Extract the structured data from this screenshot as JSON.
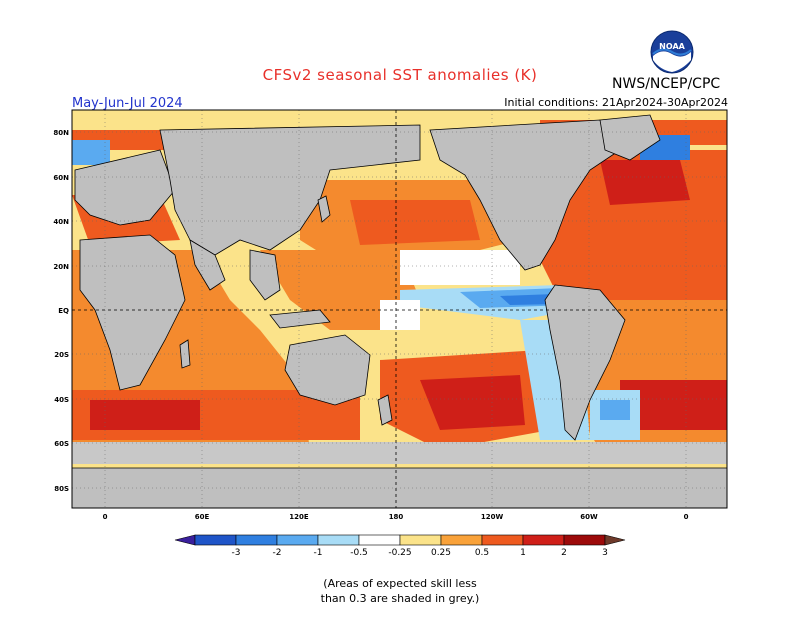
{
  "title": "CFSv2 seasonal SST anomalies (K)",
  "organization": "NWS/NCEP/CPC",
  "logo_text": "NOAA",
  "period": "May-Jun-Jul 2024",
  "initial_conditions": "Initial conditions: 21Apr2024-30Apr2024",
  "lat_labels": [
    "80N",
    "60N",
    "40N",
    "20N",
    "EQ",
    "20S",
    "40S",
    "60S",
    "80S"
  ],
  "lon_labels": [
    "0",
    "60E",
    "120E",
    "180",
    "120W",
    "60W",
    "0"
  ],
  "colorbar": {
    "labels": [
      "-3",
      "-2",
      "-1",
      "-0.5",
      "-0.25",
      "0.25",
      "0.5",
      "1",
      "2",
      "3"
    ],
    "colors": [
      "#3a1f9c",
      "#1f55c8",
      "#2f7fe0",
      "#5aaaf0",
      "#a8dcf6",
      "#ffffff",
      "#fbe38a",
      "#f9a23a",
      "#ee5a1f",
      "#cf1f18",
      "#9c0a0a",
      "#6e3a2a"
    ]
  },
  "note": {
    "line1": "(Areas of expected skill less",
    "line2": "than 0.3 are shaded in grey.)"
  },
  "colors": {
    "land": "#bfbfbf",
    "coast": "#000000",
    "grey_skill": "#c8c8c8"
  }
}
